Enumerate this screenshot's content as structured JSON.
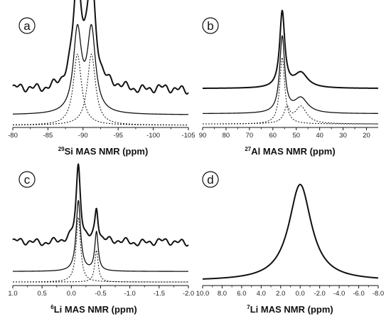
{
  "colors": {
    "line": "#111111",
    "background": "#ffffff"
  },
  "chart_data": [
    {
      "type": "line",
      "panel_label": "a",
      "isotope": "29",
      "xlabel_rest": "Si MAS NMR (ppm)",
      "xlim": [
        -80,
        -105
      ],
      "ticks": [
        -80,
        -85,
        -90,
        -95,
        -100,
        -105
      ],
      "tick_labels": [
        "-80",
        "-85",
        "-90",
        "-95",
        "-100",
        "-105"
      ],
      "traces": [
        {
          "role": "experimental",
          "baseline": 0.33,
          "noise": 0.05,
          "width": 2.0,
          "peaks": [
            {
              "center": -89.2,
              "fwhm": 1.4,
              "height": 0.93
            },
            {
              "center": -91.2,
              "fwhm": 1.4,
              "height": 0.93
            }
          ]
        },
        {
          "role": "simulated",
          "baseline": 0.11,
          "noise": 0,
          "width": 1.3,
          "peaks": [
            {
              "center": -89.2,
              "fwhm": 1.4,
              "height": 0.71
            },
            {
              "center": -91.2,
              "fwhm": 1.4,
              "height": 0.71
            }
          ]
        },
        {
          "role": "component",
          "dashed": true,
          "baseline": 0.02,
          "noise": 0,
          "width": 1.0,
          "peaks": [
            {
              "center": -89.2,
              "fwhm": 1.4,
              "height": 0.62
            }
          ]
        },
        {
          "role": "component",
          "dashed": true,
          "baseline": 0.02,
          "noise": 0,
          "width": 1.0,
          "peaks": [
            {
              "center": -91.2,
              "fwhm": 1.4,
              "height": 0.62
            }
          ]
        }
      ]
    },
    {
      "type": "line",
      "panel_label": "b",
      "isotope": "27",
      "xlabel_rest": "Al MAS NMR (ppm)",
      "xlim": [
        90,
        15
      ],
      "ticks": [
        90,
        80,
        70,
        60,
        50,
        40,
        30,
        20
      ],
      "tick_labels": [
        "90",
        "80",
        "70",
        "60",
        "50",
        "40",
        "30",
        "20"
      ],
      "traces": [
        {
          "role": "experimental",
          "baseline": 0.34,
          "noise": 0,
          "width": 2.0,
          "peaks": [
            {
              "center": 56,
              "fwhm": 2.6,
              "height": 0.66
            },
            {
              "center": 48,
              "fwhm": 7,
              "height": 0.13
            }
          ]
        },
        {
          "role": "simulated",
          "baseline": 0.12,
          "noise": 0,
          "width": 1.3,
          "peaks": [
            {
              "center": 56,
              "fwhm": 2.6,
              "height": 0.66
            },
            {
              "center": 48,
              "fwhm": 7,
              "height": 0.13
            }
          ]
        },
        {
          "role": "component",
          "dashed": true,
          "baseline": 0.03,
          "noise": 0,
          "width": 1.0,
          "peaks": [
            {
              "center": 56,
              "fwhm": 2.6,
              "height": 0.58
            }
          ]
        },
        {
          "role": "component",
          "dashed": true,
          "baseline": 0.03,
          "noise": 0,
          "width": 1.0,
          "peaks": [
            {
              "center": 54,
              "fwhm": 3,
              "height": 0.13
            },
            {
              "center": 48,
              "fwhm": 6,
              "height": 0.15
            }
          ]
        }
      ]
    },
    {
      "type": "line",
      "panel_label": "c",
      "isotope": "6",
      "xlabel_rest": "Li MAS NMR (ppm)",
      "xlim": [
        1.0,
        -2.0
      ],
      "ticks": [
        1.0,
        0.5,
        0.0,
        -0.5,
        -1.0,
        -1.5,
        -2.0
      ],
      "tick_labels": [
        "1.0",
        "0.5",
        "0.0",
        "-0.5",
        "-1.0",
        "-1.5",
        "-2.0"
      ],
      "traces": [
        {
          "role": "experimental",
          "baseline": 0.37,
          "noise": 0.04,
          "width": 2.0,
          "peaks": [
            {
              "center": -0.12,
              "fwhm": 0.09,
              "height": 0.66
            },
            {
              "center": -0.43,
              "fwhm": 0.07,
              "height": 0.3
            }
          ]
        },
        {
          "role": "simulated",
          "baseline": 0.12,
          "noise": 0,
          "width": 1.3,
          "peaks": [
            {
              "center": -0.12,
              "fwhm": 0.09,
              "height": 0.6
            },
            {
              "center": -0.43,
              "fwhm": 0.07,
              "height": 0.33
            }
          ]
        },
        {
          "role": "component",
          "dashed": true,
          "baseline": 0.03,
          "noise": 0,
          "width": 1.0,
          "peaks": [
            {
              "center": -0.12,
              "fwhm": 0.09,
              "height": 0.55
            }
          ]
        },
        {
          "role": "component",
          "dashed": true,
          "baseline": 0.03,
          "noise": 0,
          "width": 1.0,
          "peaks": [
            {
              "center": -0.43,
              "fwhm": 0.07,
              "height": 0.27
            }
          ]
        }
      ]
    },
    {
      "type": "line",
      "panel_label": "d",
      "isotope": "7",
      "xlabel_rest": "Li MAS NMR (ppm)",
      "xlim": [
        10.0,
        -8.0
      ],
      "ticks": [
        10.0,
        8.0,
        6.0,
        4.0,
        2.0,
        0.0,
        -2.0,
        -4.0,
        -6.0,
        -8.0
      ],
      "tick_labels": [
        "10.0",
        "8.0",
        "6.0",
        "4.0",
        "2.0",
        "0.0",
        "-2.0",
        "-4.0",
        "-6.0",
        "-8.0"
      ],
      "traces": [
        {
          "role": "experimental",
          "baseline": 0.04,
          "noise": 0,
          "width": 2.0,
          "peaks": [
            {
              "center": 0.0,
              "fwhm": 2.8,
              "height": 0.82
            }
          ]
        }
      ]
    }
  ]
}
